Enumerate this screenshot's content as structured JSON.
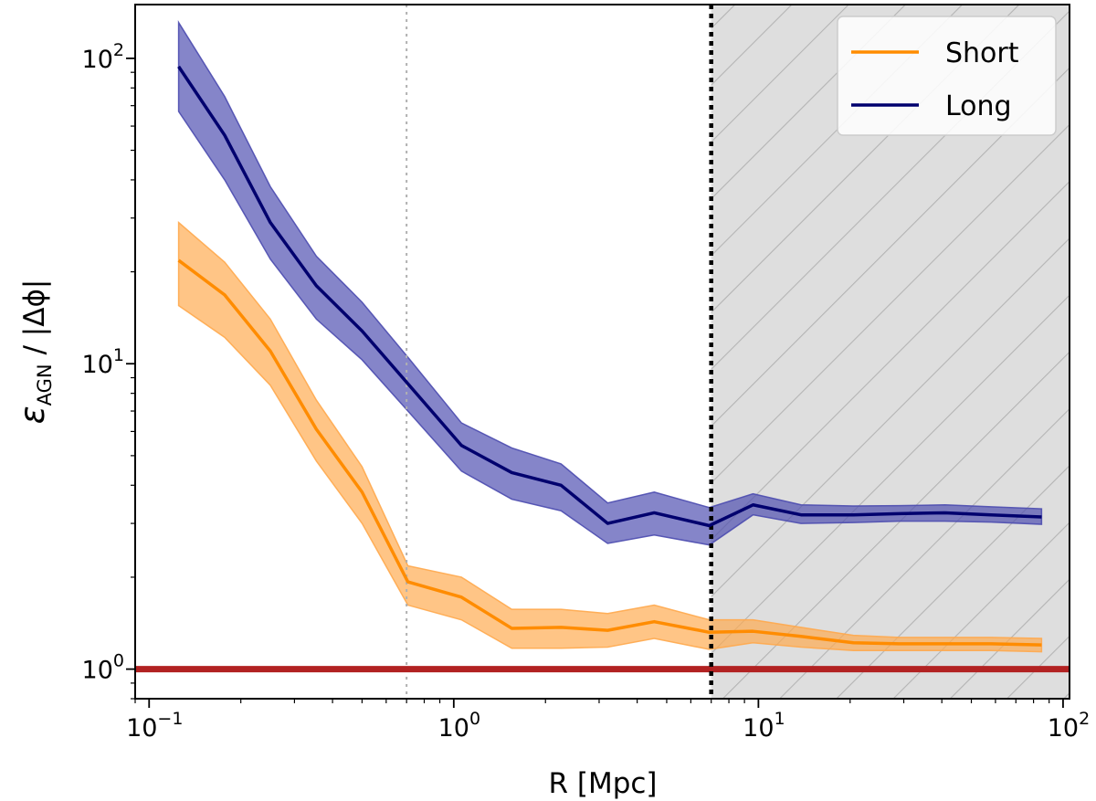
{
  "chart_data": {
    "type": "line",
    "xscale": "log",
    "yscale": "log",
    "xlim": [
      0.09,
      105
    ],
    "ylim": [
      0.8,
      150
    ],
    "xlabel": "R [Mpc]",
    "ylabel": {
      "base": "ε",
      "subscript": "AGN",
      "rest": " / |Δϕ|"
    },
    "x_ticks": [
      {
        "value": 0.1,
        "base": "10",
        "exp": "−1"
      },
      {
        "value": 1,
        "base": "10",
        "exp": "0"
      },
      {
        "value": 10,
        "base": "10",
        "exp": "1"
      },
      {
        "value": 100,
        "base": "10",
        "exp": "2"
      }
    ],
    "y_ticks": [
      {
        "value": 1,
        "base": "10",
        "exp": "0"
      },
      {
        "value": 10,
        "base": "10",
        "exp": "1"
      },
      {
        "value": 100,
        "base": "10",
        "exp": "2"
      }
    ],
    "x": [
      0.125,
      0.177,
      0.25,
      0.354,
      0.5,
      0.707,
      1.0,
      1.414,
      2.0,
      2.828,
      4.0,
      5.657,
      8.0,
      11.31,
      16.0,
      22.63,
      32.0,
      45.25,
      64.0,
      90.5
    ],
    "series": [
      {
        "name": "Short",
        "color": "#ff8c00",
        "band_color": "#ffa94d",
        "x": [
          0.125,
          0.177,
          0.25,
          0.354,
          0.5,
          0.707,
          1.06,
          1.55,
          2.25,
          3.2,
          4.55,
          6.9,
          9.6,
          13.8,
          20.5,
          29,
          41,
          58,
          85
        ],
        "values": [
          21.8,
          16.8,
          11.0,
          6.1,
          3.8,
          1.93,
          1.72,
          1.36,
          1.37,
          1.34,
          1.43,
          1.32,
          1.33,
          1.28,
          1.22,
          1.21,
          1.21,
          1.21,
          1.2
        ],
        "lower": [
          15.5,
          12.2,
          8.5,
          4.8,
          3.0,
          1.62,
          1.45,
          1.17,
          1.17,
          1.18,
          1.26,
          1.16,
          1.22,
          1.18,
          1.15,
          1.15,
          1.15,
          1.15,
          1.14
        ],
        "upper": [
          29.0,
          21.5,
          14.0,
          7.6,
          4.6,
          2.18,
          2.0,
          1.57,
          1.57,
          1.52,
          1.62,
          1.45,
          1.45,
          1.37,
          1.29,
          1.27,
          1.27,
          1.27,
          1.26
        ]
      },
      {
        "name": "Long",
        "color": "#00006e",
        "band_color": "#4b4baf",
        "x": [
          0.125,
          0.177,
          0.25,
          0.354,
          0.5,
          0.707,
          1.06,
          1.55,
          2.25,
          3.2,
          4.55,
          6.9,
          9.6,
          13.8,
          20.5,
          29,
          41,
          58,
          85
        ],
        "values": [
          94,
          56,
          29,
          18,
          12.8,
          8.6,
          5.4,
          4.4,
          4.0,
          3.0,
          3.25,
          2.95,
          3.45,
          3.2,
          3.2,
          3.23,
          3.25,
          3.2,
          3.15
        ],
        "lower": [
          67,
          40,
          22,
          14,
          10.3,
          7.0,
          4.45,
          3.6,
          3.3,
          2.58,
          2.75,
          2.55,
          3.2,
          3.0,
          3.02,
          3.05,
          3.05,
          3.03,
          2.98
        ],
        "upper": [
          131,
          75,
          38,
          22.5,
          15.9,
          10.5,
          6.4,
          5.3,
          4.7,
          3.5,
          3.8,
          3.38,
          3.75,
          3.45,
          3.42,
          3.43,
          3.45,
          3.4,
          3.35
        ]
      }
    ],
    "reference_line": {
      "y": 1,
      "color": "#b22222"
    },
    "vertical_lines": [
      {
        "x": 0.7,
        "style": "dotted",
        "color": "#b0b0b0"
      },
      {
        "x": 7.0,
        "style": "dotted",
        "color": "#000000"
      }
    ],
    "shaded_region": {
      "x_start": 7.0,
      "x_end": 105,
      "fill": "#dedede",
      "hatch_color": "#b4b4b4"
    },
    "legend": {
      "position": "top-right",
      "entries": [
        "Short",
        "Long"
      ]
    },
    "grid": false
  }
}
